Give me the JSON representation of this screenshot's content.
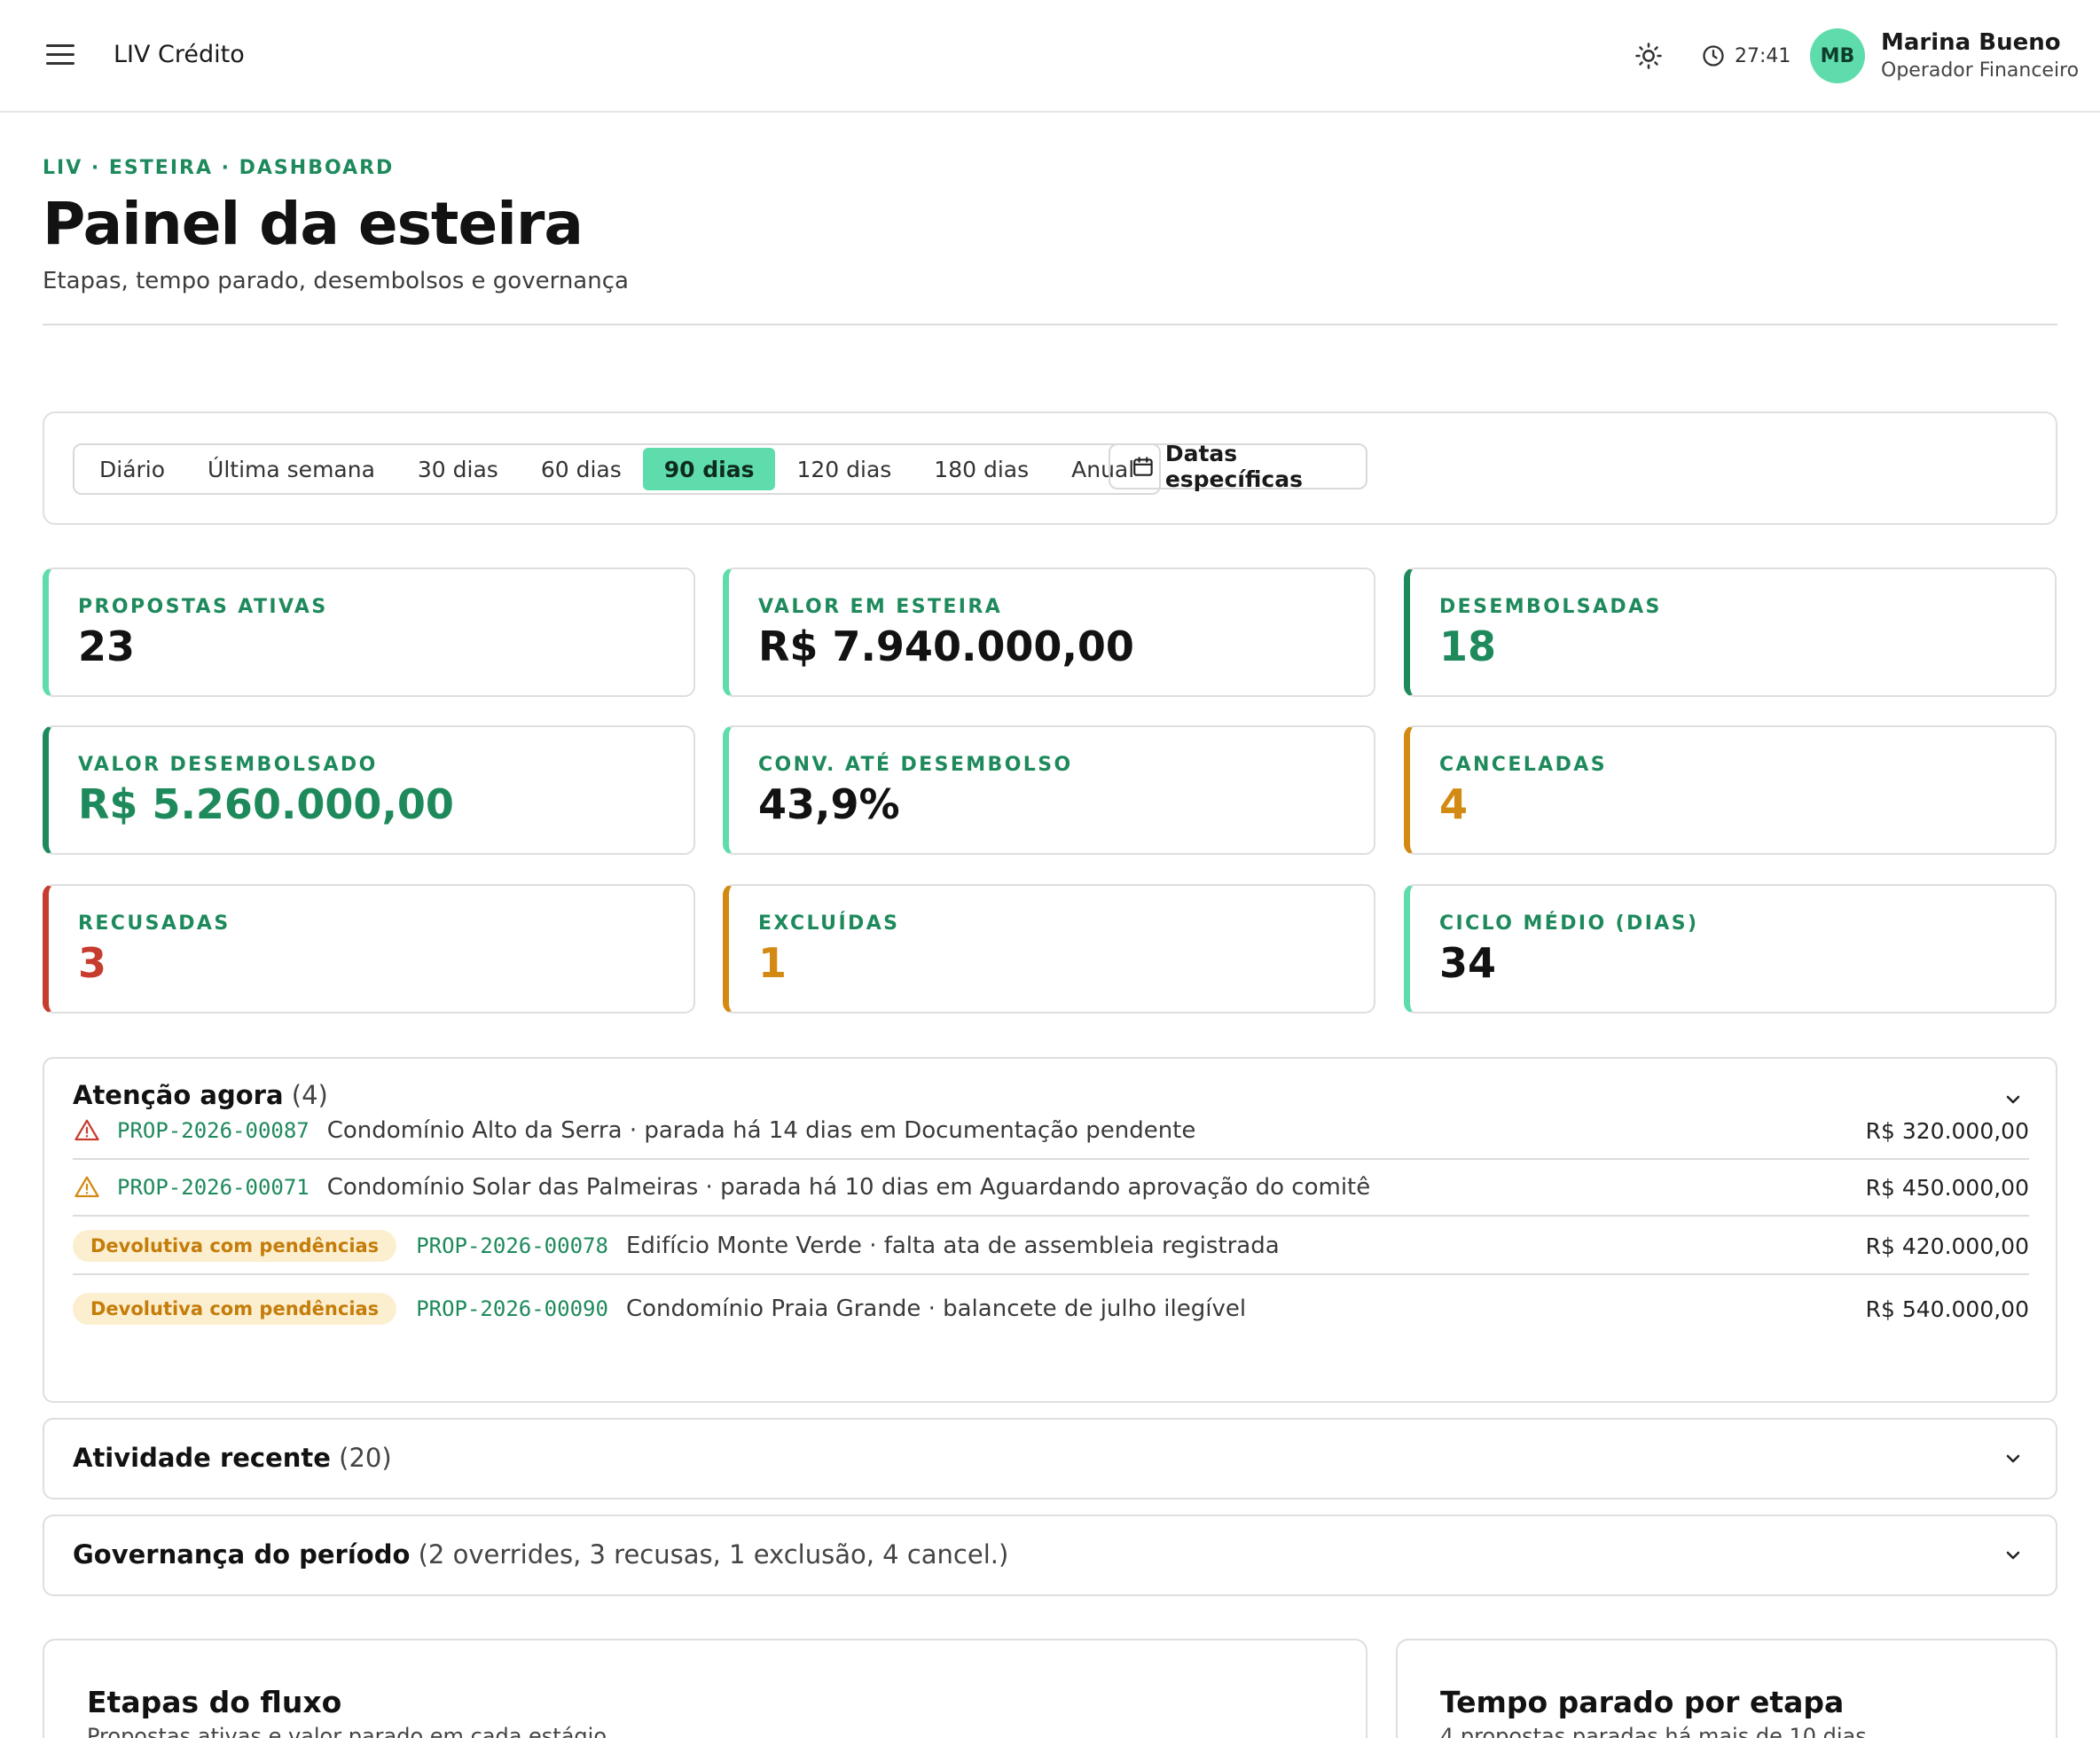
{
  "topbar": {
    "app_title": "LIV Crédito",
    "timer": "27:41",
    "avatar_initials": "MB",
    "user_name": "Marina Bueno",
    "user_role": "Operador Financeiro"
  },
  "header": {
    "breadcrumb": "LIV · ESTEIRA · DASHBOARD",
    "title": "Painel da esteira",
    "subtitle": "Etapas, tempo parado, desembolsos e governança"
  },
  "filters": {
    "periods": [
      "Diário",
      "Última semana",
      "30 dias",
      "60 dias",
      "90 dias",
      "120 dias",
      "180 dias",
      "Anual"
    ],
    "selected": "90 dias",
    "custom_dates_label": "Datas específicas"
  },
  "kpis": [
    {
      "label": "PROPOSTAS ATIVAS",
      "value": "23",
      "accent": "#5fdcab",
      "value_color": "#121212"
    },
    {
      "label": "VALOR EM ESTEIRA",
      "value": "R$ 7.940.000,00",
      "accent": "#5fdcab",
      "value_color": "#121212"
    },
    {
      "label": "DESEMBOLSADAS",
      "value": "18",
      "accent": "#1e8a5c",
      "value_color": "#1e8a5c"
    },
    {
      "label": "VALOR DESEMBOLSADO",
      "value": "R$ 5.260.000,00",
      "accent": "#1e8a5c",
      "value_color": "#1e8a5c"
    },
    {
      "label": "CONV. ATÉ DESEMBOLSO",
      "value": "43,9%",
      "accent": "#5fdcab",
      "value_color": "#121212"
    },
    {
      "label": "CANCELADAS",
      "value": "4",
      "accent": "#d38a12",
      "value_color": "#d38a12"
    },
    {
      "label": "RECUSADAS",
      "value": "3",
      "accent": "#c63d2f",
      "value_color": "#c63d2f"
    },
    {
      "label": "EXCLUÍDAS",
      "value": "1",
      "accent": "#d38a12",
      "value_color": "#d38a12"
    },
    {
      "label": "CICLO MÉDIO (DIAS)",
      "value": "34",
      "accent": "#5fdcab",
      "value_color": "#121212"
    }
  ],
  "attention": {
    "title": "Atenção agora",
    "count": "(4)",
    "items": [
      {
        "icon": "alert-triangle-red-icon",
        "badge": "",
        "id": "PROP-2026-00087",
        "text": "Condomínio Alto da Serra · parada há 14 dias em Documentação pendente",
        "amount": "R$ 320.000,00"
      },
      {
        "icon": "alert-triangle-amber-icon",
        "badge": "",
        "id": "PROP-2026-00071",
        "text": "Condomínio Solar das Palmeiras · parada há 10 dias em Aguardando aprovação do comitê",
        "amount": "R$ 450.000,00"
      },
      {
        "icon": "",
        "badge": "Devolutiva com pendências",
        "id": "PROP-2026-00078",
        "text": "Edifício Monte Verde · falta ata de assembleia registrada",
        "amount": "R$ 420.000,00"
      },
      {
        "icon": "",
        "badge": "Devolutiva com pendências",
        "id": "PROP-2026-00090",
        "text": "Condomínio Praia Grande · balancete de julho ilegível",
        "amount": "R$ 540.000,00"
      }
    ]
  },
  "activity": {
    "title": "Atividade recente",
    "count": "(20)"
  },
  "governance": {
    "title": "Governança do período",
    "details": "(2 overrides, 3 recusas, 1 exclusão, 4 cancel.)"
  },
  "stages_card": {
    "title": "Etapas do fluxo",
    "subtitle": "Propostas ativas e valor parado em cada estágio"
  },
  "stall_card": {
    "title": "Tempo parado por etapa",
    "subtitle": "4 propostas paradas há mais de 10 dias"
  },
  "colors": {
    "brand": "#1e8a5c",
    "accent": "#5fdcab",
    "danger": "#c63d2f",
    "warning": "#d38a12"
  }
}
